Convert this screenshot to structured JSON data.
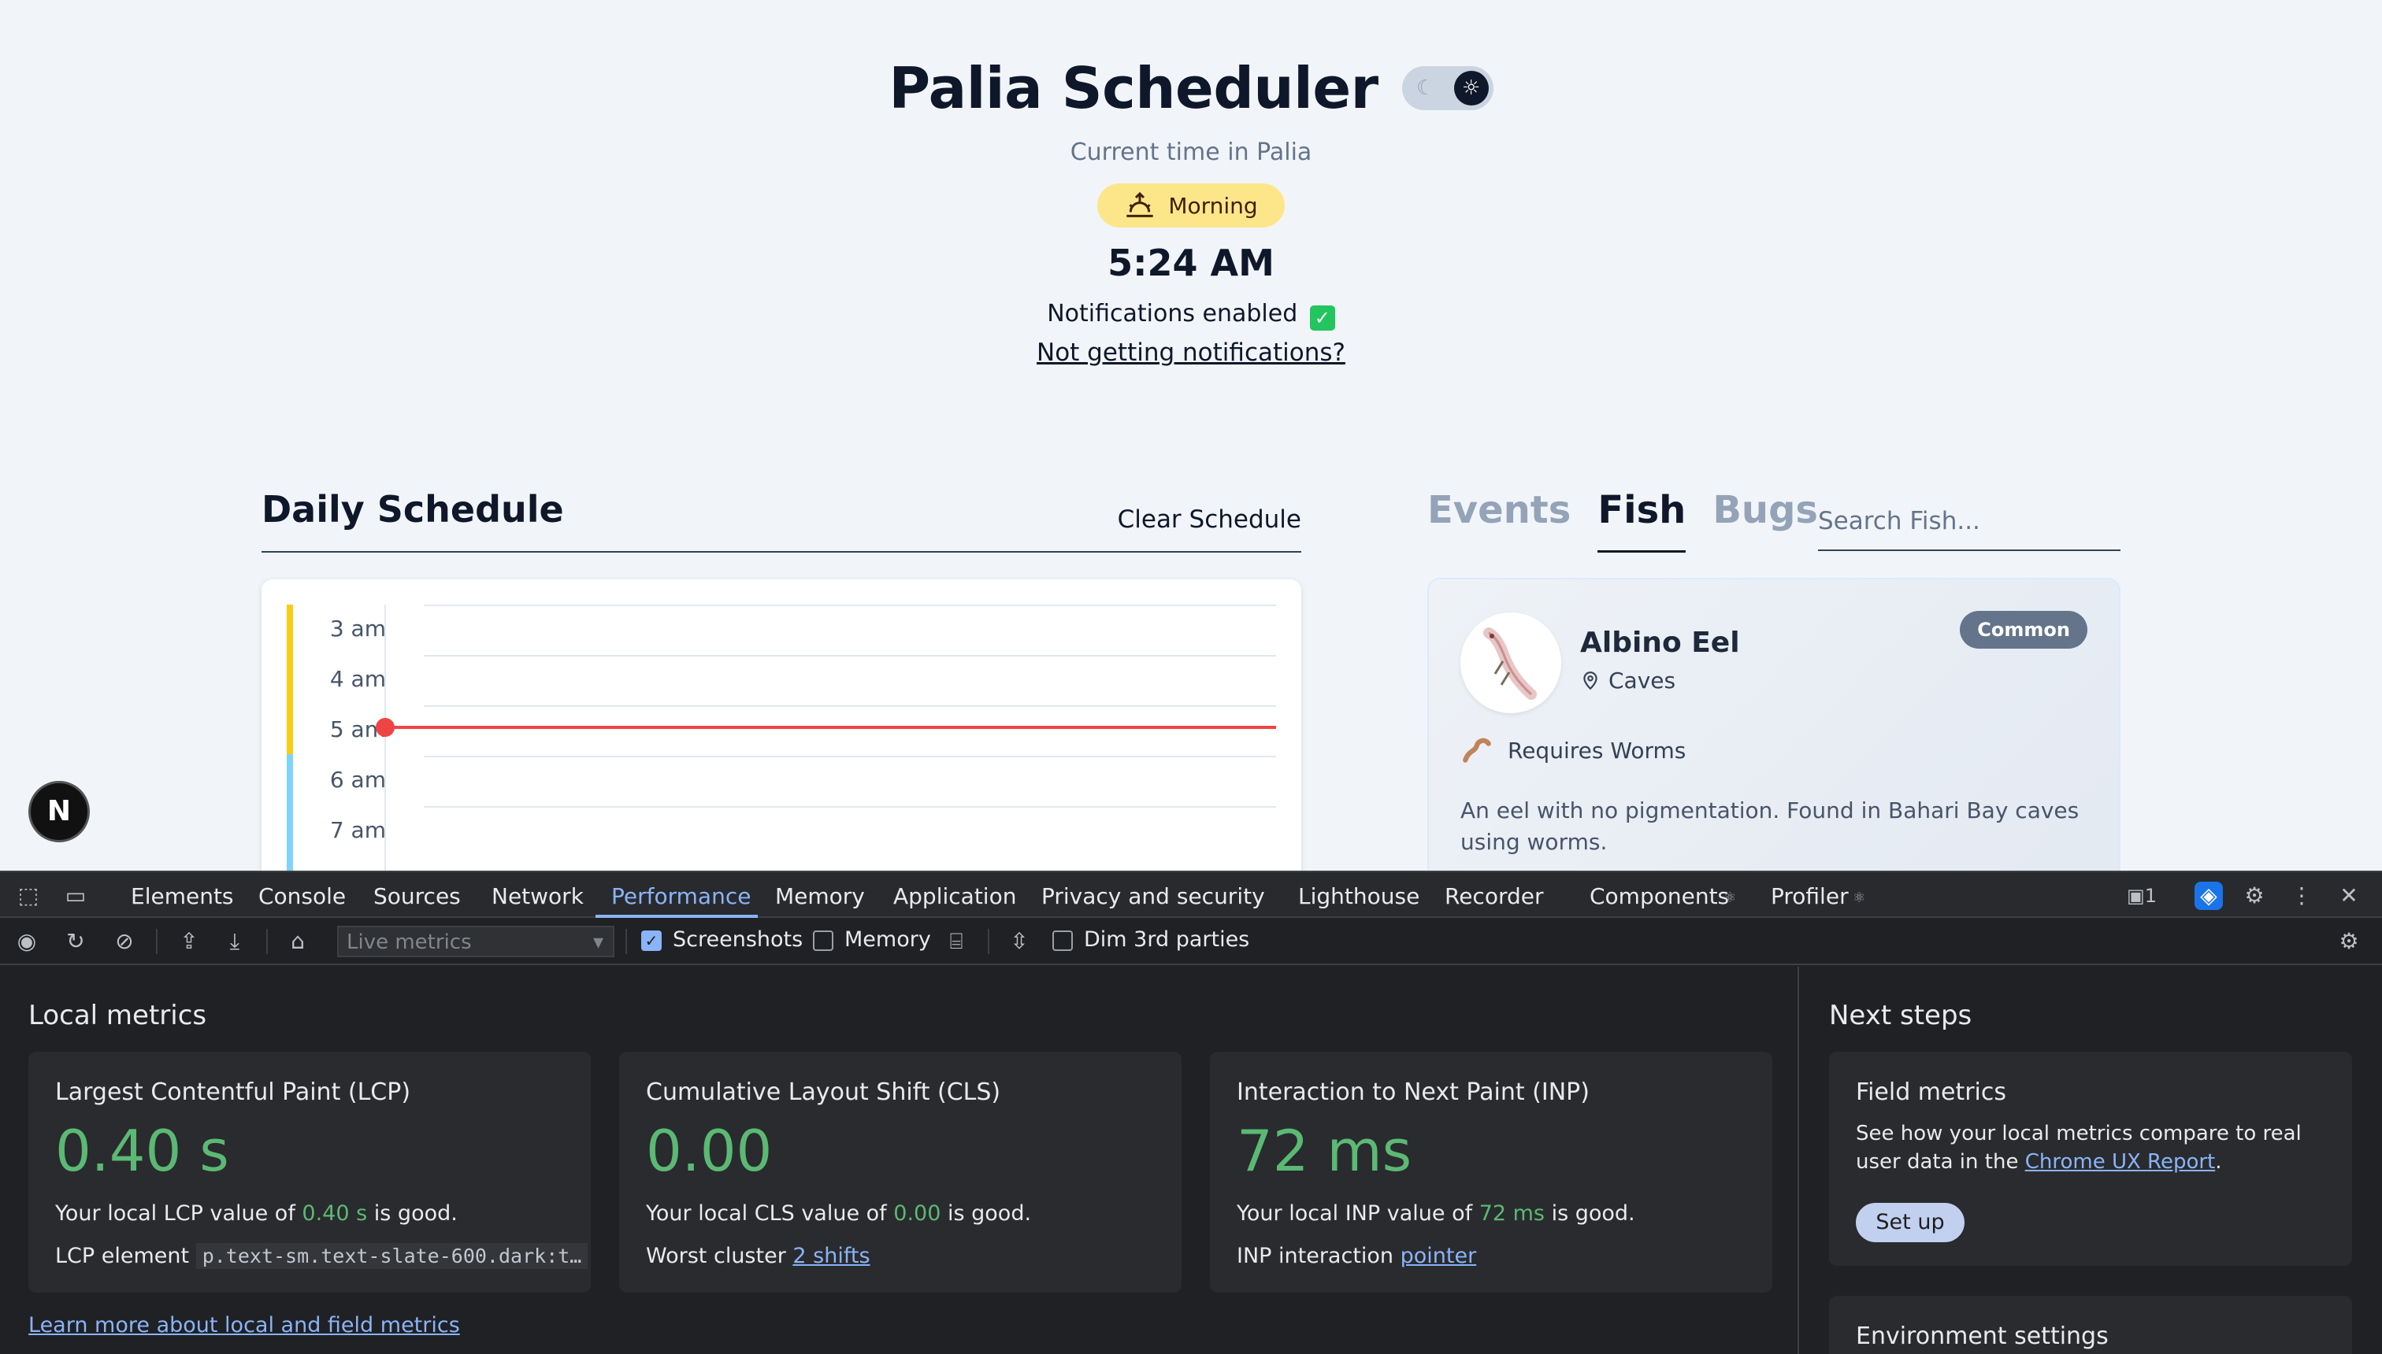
{
  "app": {
    "title": "Palia Scheduler",
    "subtitle": "Current time in Palia",
    "phase": "Morning",
    "clock": "5:24 AM",
    "notifications_status": "Notifications enabled",
    "notifications_link": "Not getting notifications?",
    "fab_letter": "N"
  },
  "schedule": {
    "title": "Daily Schedule",
    "clear_label": "Clear Schedule",
    "hours": [
      "3 am",
      "4 am",
      "5 am",
      "6 am",
      "7 am"
    ],
    "current_hour": "5 am"
  },
  "tabs": {
    "events": "Events",
    "fish": "Fish",
    "bugs": "Bugs",
    "active": "Fish"
  },
  "search": {
    "placeholder": "Search Fish..."
  },
  "fish_card": {
    "name": "Albino Eel",
    "location": "Caves",
    "rarity": "Common",
    "bait": "Requires Worms",
    "description": "An eel with no pigmentation. Found in Bahari Bay caves using worms."
  },
  "devtools": {
    "tabs": [
      "Elements",
      "Console",
      "Sources",
      "Network",
      "Performance",
      "Memory",
      "Application",
      "Privacy and security",
      "Lighthouse",
      "Recorder",
      "Components",
      "Profiler"
    ],
    "active_tab": "Performance",
    "issues_count": "1",
    "toolbar": {
      "live_metrics": "Live metrics",
      "screenshots_label": "Screenshots",
      "memory_label": "Memory",
      "dim_label": "Dim 3rd parties"
    },
    "local_metrics": {
      "title": "Local metrics",
      "lcp": {
        "name": "Largest Contentful Paint (LCP)",
        "value": "0.40 s",
        "desc_pre": "Your local LCP value of ",
        "desc_val": "0.40 s",
        "desc_post": " is good.",
        "extra_label": "LCP element",
        "extra_code": "p.text-sm.text-slate-600.dark:t…"
      },
      "cls": {
        "name": "Cumulative Layout Shift (CLS)",
        "value": "0.00",
        "desc_pre": "Your local CLS value of ",
        "desc_val": "0.00",
        "desc_post": " is good.",
        "extra_label": "Worst cluster",
        "extra_link": "2 shifts"
      },
      "inp": {
        "name": "Interaction to Next Paint (INP)",
        "value": "72 ms",
        "desc_pre": "Your local INP value of ",
        "desc_val": "72 ms",
        "desc_post": " is good.",
        "extra_label": "INP interaction",
        "extra_link": "pointer"
      },
      "learn_more": "Learn more about local and field metrics"
    },
    "next_steps": {
      "title": "Next steps",
      "field_title": "Field metrics",
      "field_text_pre": "See how your local metrics compare to real user data in the ",
      "field_link": "Chrome UX Report",
      "field_text_post": ".",
      "setup_label": "Set up",
      "env_title": "Environment settings"
    }
  },
  "colors": {
    "good": "#5bb974",
    "accent": "#8ab4f8",
    "now_line": "#ef4444",
    "phase_badge": "#fde68a"
  }
}
